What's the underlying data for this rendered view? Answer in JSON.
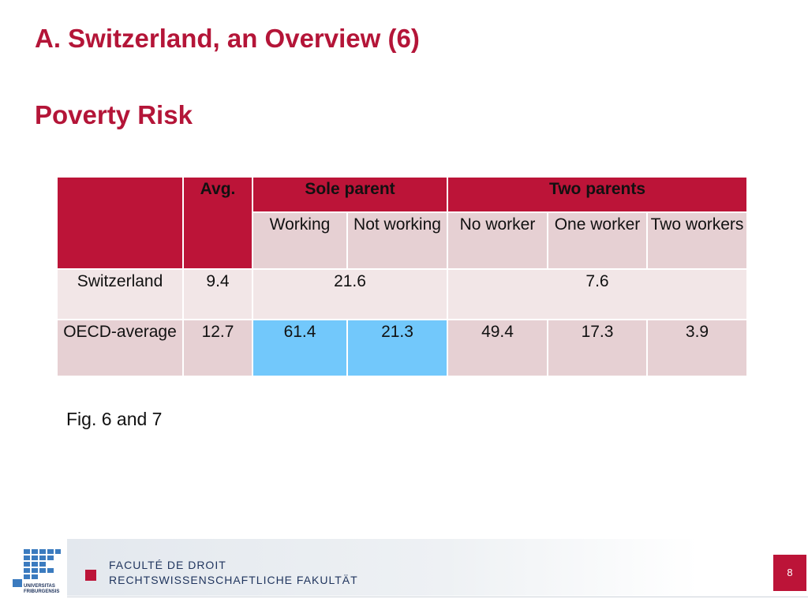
{
  "title": "A. Switzerland, an Overview (6)",
  "subtitle": "Poverty Risk",
  "table": {
    "header": {
      "avg": "Avg.",
      "sole_parent": "Sole parent",
      "two_parents": "Two parents"
    },
    "subheader": {
      "working": "Working",
      "not_working": "Not working",
      "no_worker": "No worker",
      "one_worker": "One worker",
      "two_workers": "Two workers"
    },
    "rows": [
      {
        "label": "Switzerland",
        "avg": "9.4",
        "sole_parent": "21.6",
        "two_parents": "7.6"
      },
      {
        "label": "OECD-average",
        "avg": "12.7",
        "working": "61.4",
        "not_working": "21.3",
        "no_worker": "49.4",
        "one_worker": "17.3",
        "two_workers": "3.9"
      }
    ]
  },
  "caption": "Fig. 6 and 7",
  "footer": {
    "faculty_fr": "FACULTÉ DE DROIT",
    "faculty_de": "RECHTSWISSENSCHAFTLICHE FAKULTÄT",
    "logo_text": "UNIVERSITAS FRIBURGENSIS",
    "page_number": "8"
  },
  "colors": {
    "accent": "#bc1438",
    "title_red": "#b41538",
    "highlight_blue": "#72c8fb",
    "cell_pink": "#e6d0d3",
    "cell_light": "#f2e6e7"
  }
}
